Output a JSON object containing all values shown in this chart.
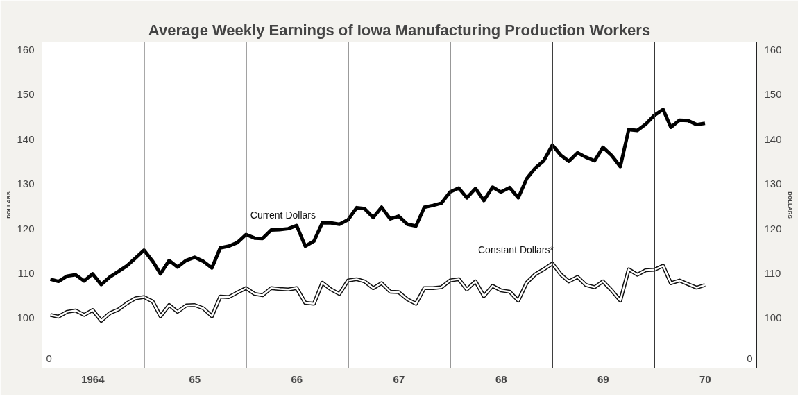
{
  "chart_data": {
    "type": "line",
    "title": "Average Weekly Earnings of Iowa Manufacturing Production Workers",
    "ylabel": "DOLLARS",
    "y2label": "DOLLARS",
    "x": [
      "1964-01-31",
      "1964-02-29",
      "1964-03-31",
      "1964-04-30",
      "1964-05-31",
      "1964-06-30",
      "1964-07-31",
      "1964-08-31",
      "1964-09-30",
      "1964-10-31",
      "1964-11-30",
      "1964-12-31",
      "1965-01-31",
      "1965-02-28",
      "1965-03-31",
      "1965-04-30",
      "1965-05-31",
      "1965-06-30",
      "1965-07-31",
      "1965-08-31",
      "1965-09-30",
      "1965-10-31",
      "1965-11-30",
      "1965-12-31",
      "1966-01-31",
      "1966-02-28",
      "1966-03-31",
      "1966-04-30",
      "1966-05-31",
      "1966-06-30",
      "1966-07-31",
      "1966-08-31",
      "1966-09-30",
      "1966-10-31",
      "1966-11-30",
      "1966-12-31",
      "1967-01-31",
      "1967-02-28",
      "1967-03-31",
      "1967-04-30",
      "1967-05-31",
      "1967-06-30",
      "1967-07-31",
      "1967-08-31",
      "1967-09-30",
      "1967-10-31",
      "1967-11-30",
      "1967-12-31",
      "1968-01-31",
      "1968-02-29",
      "1968-03-31",
      "1968-04-30",
      "1968-05-31",
      "1968-06-30",
      "1968-07-31",
      "1968-08-31",
      "1968-09-30",
      "1968-10-31",
      "1968-11-30",
      "1968-12-31",
      "1969-01-31",
      "1969-02-28",
      "1969-03-31",
      "1969-04-30",
      "1969-05-31",
      "1969-06-30",
      "1969-07-31",
      "1969-08-31",
      "1969-09-30",
      "1969-10-31",
      "1969-11-30",
      "1969-12-31",
      "1970-01-31",
      "1970-02-28",
      "1970-03-31",
      "1970-04-30",
      "1970-05-31",
      "1970-06-30"
    ],
    "series": [
      {
        "name": "Current Dollars",
        "color": "#000000",
        "values": [
          108.7,
          108.2,
          109.4,
          109.7,
          108.3,
          109.9,
          107.5,
          109.2,
          110.4,
          111.7,
          113.4,
          115.2,
          112.7,
          109.9,
          112.9,
          111.4,
          112.9,
          113.6,
          112.7,
          111.2,
          115.7,
          116.1,
          116.9,
          118.7,
          117.9,
          117.8,
          119.7,
          119.8,
          120.0,
          120.7,
          116.1,
          117.2,
          121.3,
          121.3,
          121.0,
          122.0,
          124.7,
          124.5,
          122.5,
          124.8,
          122.2,
          122.8,
          121.0,
          120.6,
          124.8,
          125.2,
          125.7,
          128.2,
          129.1,
          126.9,
          129.0,
          126.3,
          129.3,
          128.2,
          129.2,
          126.9,
          131.2,
          133.6,
          135.2,
          138.7,
          136.4,
          135.1,
          137.0,
          136.0,
          135.2,
          138.2,
          136.4,
          133.9,
          142.2,
          142.0,
          143.4,
          145.4,
          146.7,
          142.7,
          144.3,
          144.2,
          143.3,
          143.6
        ]
      },
      {
        "name": "Constant Dollars*",
        "color": "#ffffff",
        "values": [
          100.7,
          100.3,
          101.4,
          101.7,
          100.7,
          101.8,
          99.4,
          101.1,
          101.9,
          103.3,
          104.4,
          104.7,
          103.7,
          100.4,
          102.9,
          101.4,
          102.8,
          102.9,
          102.2,
          100.4,
          104.8,
          104.7,
          105.7,
          106.7,
          105.4,
          105.1,
          106.7,
          106.5,
          106.4,
          106.7,
          103.4,
          103.2,
          107.9,
          106.4,
          105.4,
          108.4,
          108.7,
          108.2,
          106.7,
          107.8,
          105.9,
          105.8,
          104.2,
          103.2,
          106.7,
          106.7,
          106.9,
          108.4,
          108.7,
          106.4,
          108.2,
          104.9,
          107.2,
          106.2,
          105.9,
          103.9,
          107.9,
          109.8,
          110.9,
          112.2,
          109.7,
          108.2,
          109.2,
          107.4,
          106.9,
          108.2,
          106.2,
          103.9,
          110.9,
          109.7,
          110.7,
          110.8,
          111.7,
          107.8,
          108.4,
          107.6,
          106.8,
          107.4
        ]
      }
    ],
    "xlim": [
      "1964-01-01",
      "1971-01-01"
    ],
    "xticks": [
      {
        "value": "1964-07-01",
        "label": "1964"
      },
      {
        "value": "1965-07-01",
        "label": "65"
      },
      {
        "value": "1966-07-01",
        "label": "66"
      },
      {
        "value": "1967-07-01",
        "label": "67"
      },
      {
        "value": "1968-07-01",
        "label": "68"
      },
      {
        "value": "1969-07-01",
        "label": "69"
      },
      {
        "value": "1970-07-01",
        "label": "70"
      }
    ],
    "ylim": [
      88.8,
      161.8
    ],
    "yticks": [
      100,
      110,
      120,
      130,
      140,
      150,
      160
    ],
    "annotations": [
      "0",
      "0"
    ],
    "y2lim": [
      88.8,
      161.8
    ],
    "y2ticks": [
      100,
      110,
      120,
      130,
      140,
      150,
      160
    ],
    "ref_lines": [
      {
        "axis": "x",
        "value": "1965-01-01",
        "label": null
      },
      {
        "axis": "x",
        "value": "1966-01-01",
        "label": null
      },
      {
        "axis": "x",
        "value": "1967-01-01",
        "label": null
      },
      {
        "axis": "x",
        "value": "1968-01-01",
        "label": null
      },
      {
        "axis": "x",
        "value": "1969-01-01",
        "label": null
      },
      {
        "axis": "x",
        "value": "1970-01-01",
        "label": null
      }
    ],
    "grid": false
  }
}
